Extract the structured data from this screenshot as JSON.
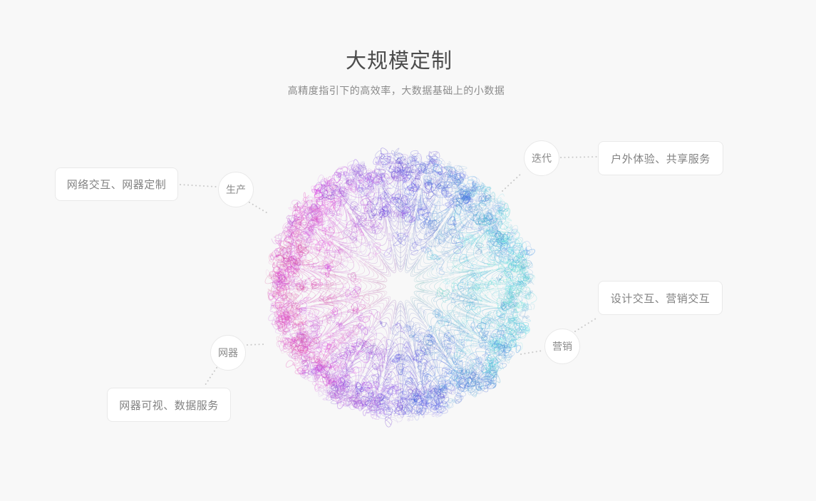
{
  "page": {
    "title": "大规模定制",
    "subtitle": "高精度指引下的高效率，大数据基础上的小数据",
    "background_color": "#f8f8f8"
  },
  "diagram": {
    "type": "radial-feature-diagram",
    "center_graphic": "generative-scribble-sphere",
    "sphere_colors": {
      "left": "#c158c0",
      "top": "#6a63ce",
      "right": "#52cfe2",
      "bottom": "#5f66cf",
      "core": "#7379b4"
    },
    "connector_color": "#c9c9c9",
    "nodes": [
      {
        "id": "production",
        "label": "生产",
        "description": "网络交互、网器定制"
      },
      {
        "id": "iteration",
        "label": "迭代",
        "description": "户外体验、共享服务"
      },
      {
        "id": "marketing",
        "label": "营销",
        "description": "设计交互、营销交互"
      },
      {
        "id": "device",
        "label": "网器",
        "description": "网器可视、数据服务"
      }
    ]
  }
}
